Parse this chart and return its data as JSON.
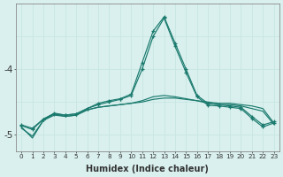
{
  "xlabel": "Humidex (Indice chaleur)",
  "background_color": "#d9f0ee",
  "grid_color_v": "#c8e6e2",
  "grid_color_h": "#c8e6e2",
  "line_color": "#1a7a6e",
  "x_values": [
    0,
    1,
    2,
    3,
    4,
    5,
    6,
    7,
    8,
    9,
    10,
    11,
    12,
    13,
    14,
    15,
    16,
    17,
    18,
    19,
    20,
    21,
    22,
    23
  ],
  "x_labels": [
    "0",
    "1",
    "2",
    "3",
    "4",
    "5",
    "6",
    "7",
    "8",
    "9",
    "10",
    "11",
    "12",
    "13",
    "14",
    "15",
    "16",
    "17",
    "18",
    "19",
    "20",
    "21",
    "22",
    "23"
  ],
  "line1_y": [
    -4.88,
    -5.05,
    -4.78,
    -4.7,
    -4.72,
    -4.7,
    -4.62,
    -4.58,
    -4.56,
    -4.54,
    -4.52,
    -4.5,
    -4.46,
    -4.44,
    -4.44,
    -4.46,
    -4.48,
    -4.5,
    -4.52,
    -4.52,
    -4.54,
    -4.56,
    -4.6,
    -4.82
  ],
  "line2_y": [
    -4.85,
    -4.9,
    -4.76,
    -4.68,
    -4.7,
    -4.68,
    -4.6,
    -4.54,
    -4.5,
    -4.46,
    -4.4,
    -4.0,
    -3.5,
    -3.22,
    -3.65,
    -4.05,
    -4.42,
    -4.55,
    -4.56,
    -4.58,
    -4.6,
    -4.75,
    -4.88,
    -4.82
  ],
  "line3_y": [
    -4.9,
    -5.02,
    -4.78,
    -4.68,
    -4.72,
    -4.7,
    -4.62,
    -4.58,
    -4.56,
    -4.54,
    -4.52,
    -4.48,
    -4.42,
    -4.4,
    -4.42,
    -4.45,
    -4.48,
    -4.52,
    -4.54,
    -4.54,
    -4.56,
    -4.6,
    -4.64,
    -4.84
  ],
  "line4_y": [
    -4.86,
    -4.92,
    -4.76,
    -4.67,
    -4.7,
    -4.68,
    -4.6,
    -4.52,
    -4.48,
    -4.45,
    -4.38,
    -3.9,
    -3.42,
    -3.2,
    -3.6,
    -4.0,
    -4.4,
    -4.52,
    -4.54,
    -4.56,
    -4.58,
    -4.72,
    -4.85,
    -4.8
  ],
  "ylim": [
    -5.25,
    -3.0
  ],
  "yticks": [
    -5.0,
    -4.0
  ],
  "ytick_labels": [
    "-5",
    "-4"
  ]
}
